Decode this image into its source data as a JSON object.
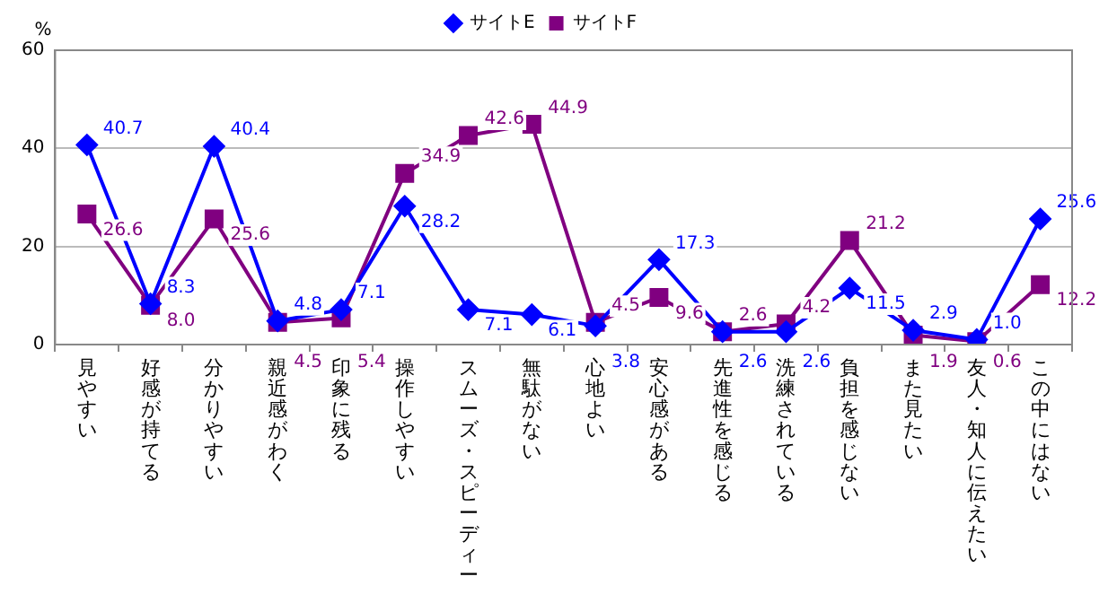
{
  "chart_data": {
    "type": "line",
    "ylabel": "%",
    "categories": [
      "見やすい",
      "好感が持てる",
      "分かりやすい",
      "親近感がわく",
      "印象に残る",
      "操作しやすい",
      "スムーズ・スピーディー",
      "無駄がない",
      "心地よい",
      "安心感がある",
      "先進性を感じる",
      "洗練されている",
      "負担を感じない",
      "また見たい",
      "友人・知人に伝えたい",
      "この中にはない"
    ],
    "series": [
      {
        "name": "サイトE",
        "color": "#0000ff",
        "marker": "diamond",
        "values": [
          40.7,
          8.3,
          40.4,
          4.8,
          7.1,
          28.2,
          7.1,
          6.1,
          3.8,
          17.3,
          2.6,
          2.6,
          11.5,
          2.9,
          1.0,
          25.6
        ],
        "value_labels": [
          "40.7",
          "8.3",
          "40.4",
          "4.8",
          "7.1",
          "28.2",
          "7.1",
          "6.1",
          "3.8",
          "17.3",
          "2.6",
          "2.6",
          "11.5",
          "2.9",
          "1.0",
          "25.6"
        ]
      },
      {
        "name": "サイトF",
        "color": "#800080",
        "marker": "square",
        "values": [
          26.6,
          8.0,
          25.6,
          4.5,
          5.4,
          34.9,
          42.6,
          44.9,
          4.5,
          9.6,
          2.6,
          4.2,
          21.2,
          1.9,
          0.6,
          12.2
        ],
        "value_labels": [
          "26.6",
          "8.0",
          "25.6",
          "4.5",
          "5.4",
          "34.9",
          "42.6",
          "44.9",
          "4.5",
          "9.6",
          "2.6",
          "4.2",
          "21.2",
          "1.9",
          "0.6",
          "12.2"
        ]
      }
    ],
    "ylim": [
      0,
      60
    ],
    "yticks": [
      0,
      20,
      40,
      60
    ],
    "grid": "y",
    "legend": "top",
    "data_labels": true
  }
}
